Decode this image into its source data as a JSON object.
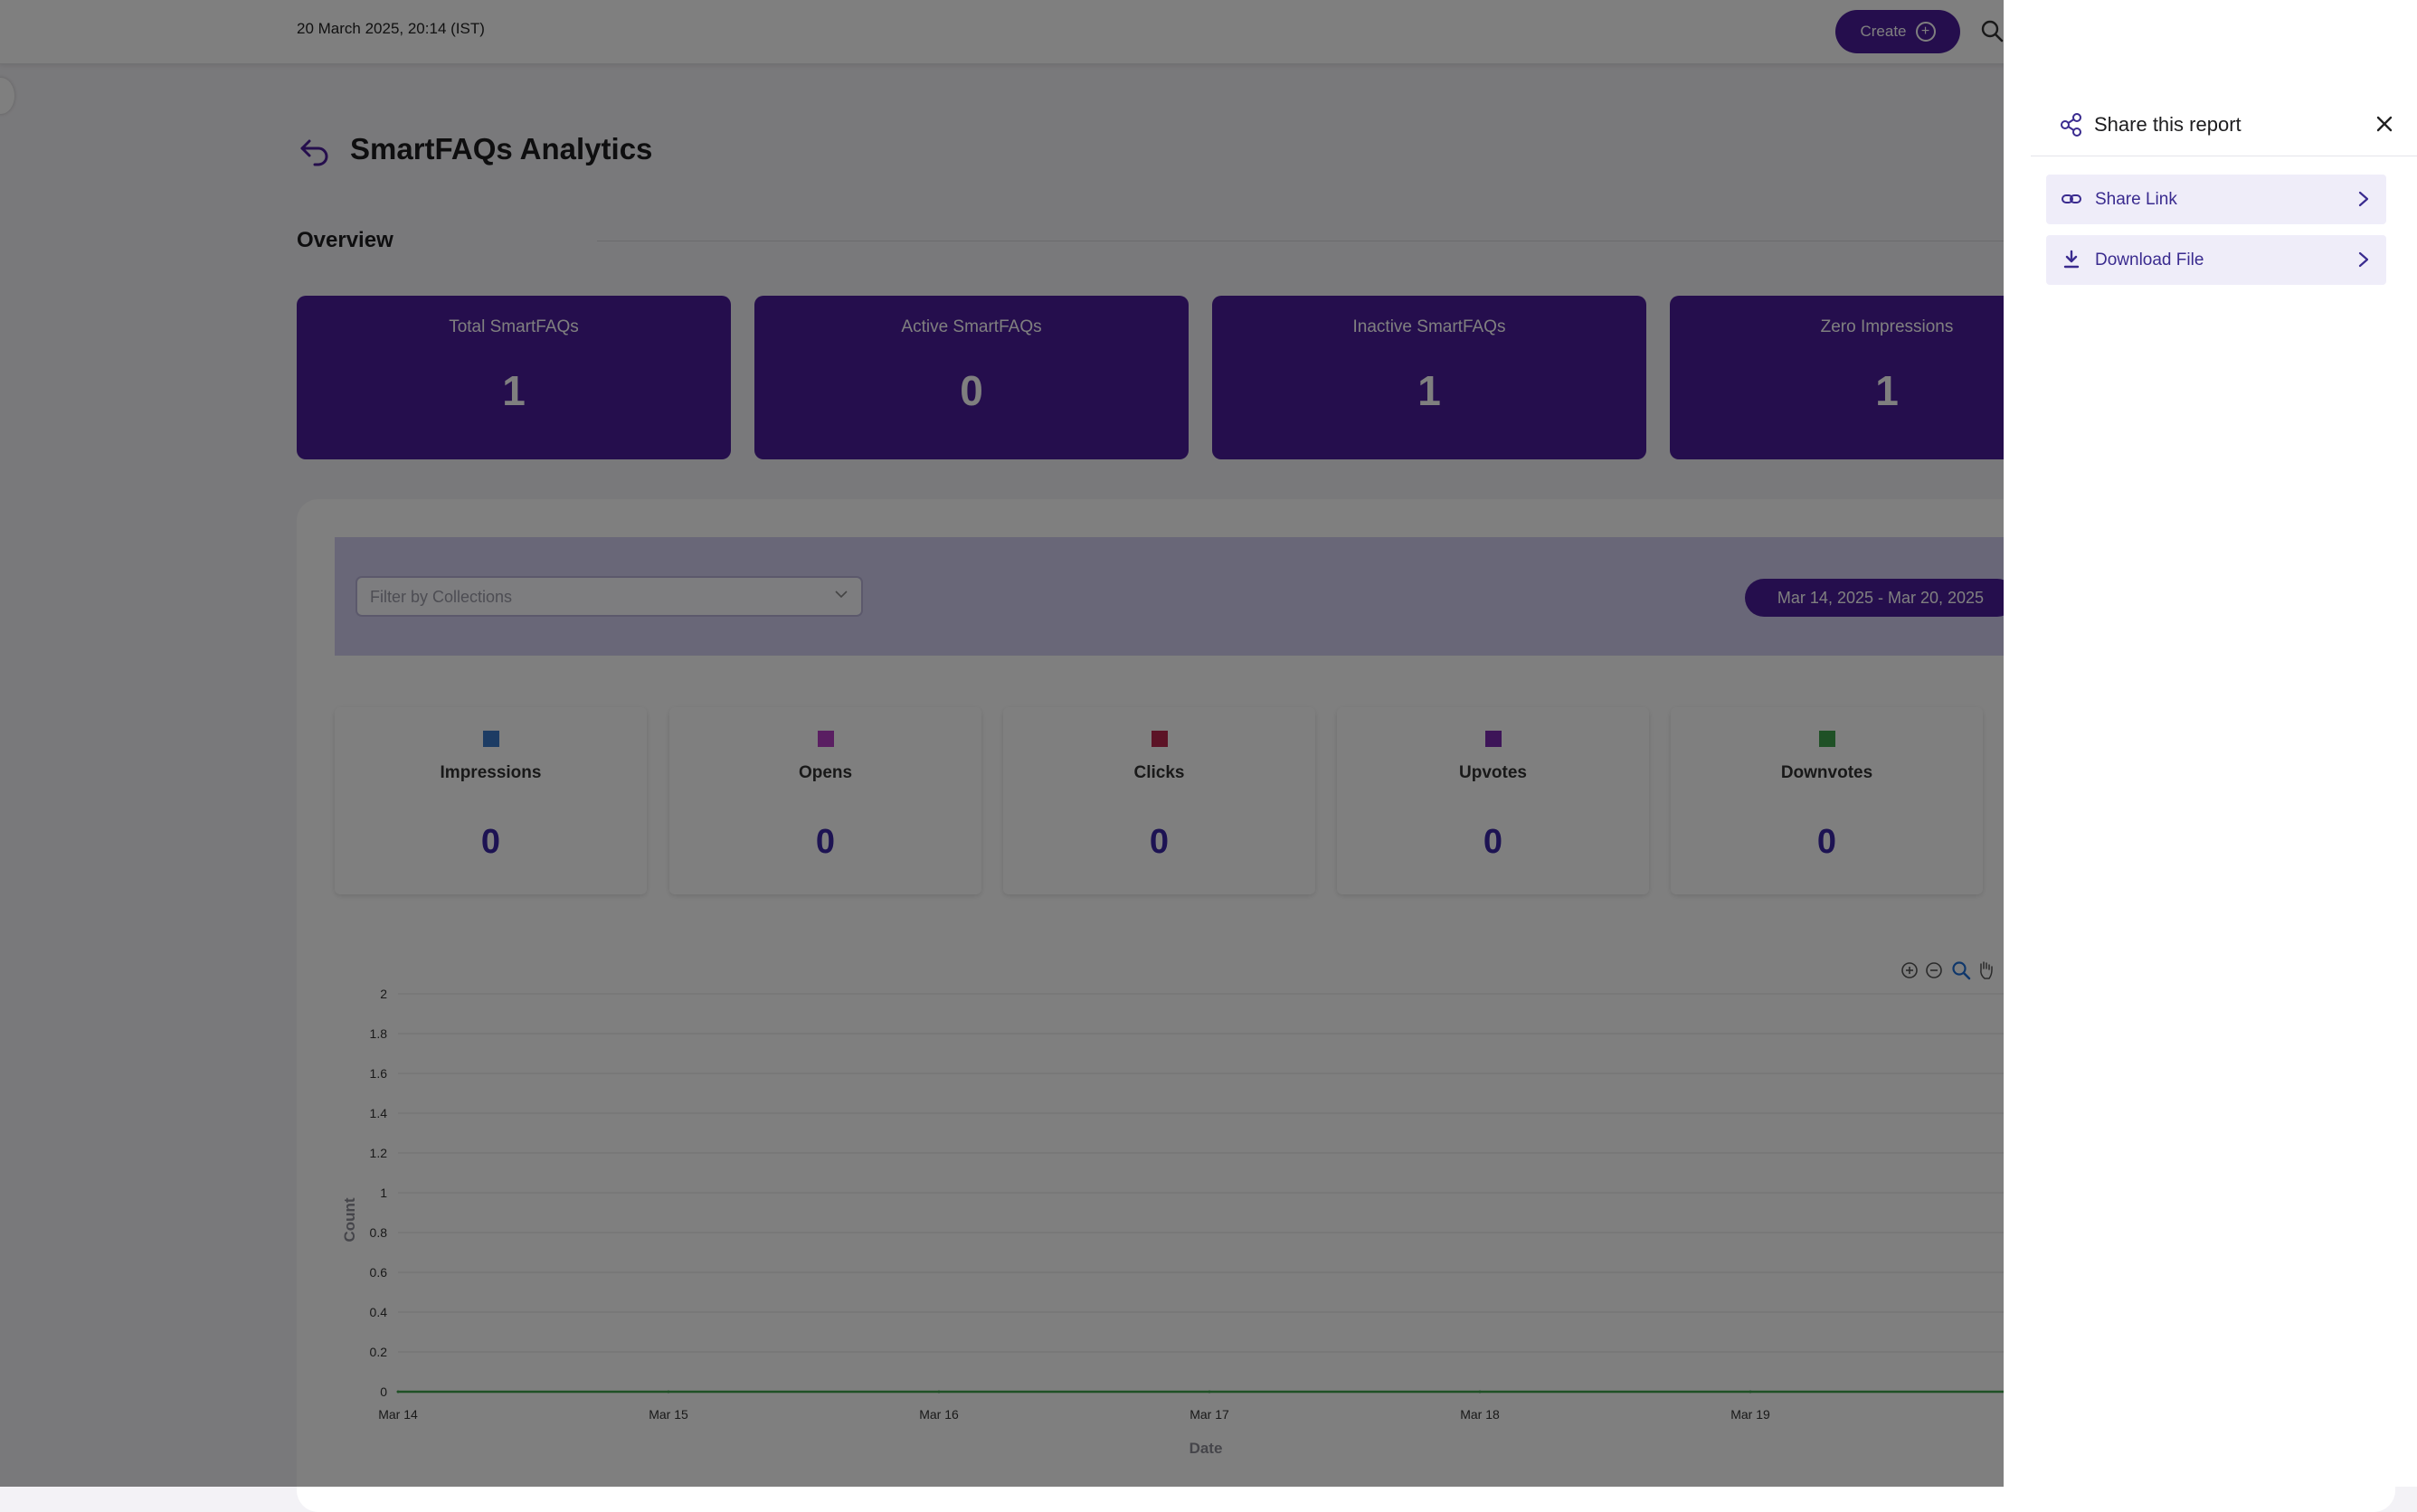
{
  "header": {
    "datetime": "20 March 2025, 20:14 (IST)",
    "create_label": "Create"
  },
  "page": {
    "title": "SmartFAQs Analytics",
    "section_title": "Overview"
  },
  "kpis": [
    {
      "label": "Total SmartFAQs",
      "value": "1"
    },
    {
      "label": "Active SmartFAQs",
      "value": "0"
    },
    {
      "label": "Inactive SmartFAQs",
      "value": "1"
    },
    {
      "label": "Zero Impressions",
      "value": "1"
    }
  ],
  "filters": {
    "collections_placeholder": "Filter by Collections",
    "date_range": "Mar 14, 2025 - Mar 20, 2025"
  },
  "metrics": [
    {
      "label": "Impressions",
      "value": "0",
      "color": "#3a78c8"
    },
    {
      "label": "Opens",
      "value": "0",
      "color": "#b43cc4"
    },
    {
      "label": "Clicks",
      "value": "0",
      "color": "#b8264c"
    },
    {
      "label": "Upvotes",
      "value": "0",
      "color": "#7a2ab0"
    },
    {
      "label": "Downvotes",
      "value": "0",
      "color": "#3fa34d"
    }
  ],
  "chart_data": {
    "type": "line",
    "x": [
      "Mar 14",
      "Mar 15",
      "Mar 16",
      "Mar 17",
      "Mar 18",
      "Mar 19"
    ],
    "xlabel": "Date",
    "ylabel": "Count",
    "ylim": [
      0,
      2
    ],
    "yticks": [
      "0",
      "0.2",
      "0.4",
      "0.6",
      "0.8",
      "1",
      "1.2",
      "1.4",
      "1.6",
      "1.8",
      "2"
    ],
    "grid": true,
    "series": [
      {
        "values": [
          0,
          0,
          0,
          0,
          0,
          0
        ],
        "color": "#3fa34d"
      }
    ],
    "toolbar_icons": [
      "zoom-in-icon",
      "zoom-out-icon",
      "magnifier-icon",
      "pan-hand-icon"
    ]
  },
  "share_drawer": {
    "title": "Share this report",
    "options": [
      {
        "label": "Share Link",
        "icon": "link-icon"
      },
      {
        "label": "Download File",
        "icon": "download-icon"
      }
    ]
  },
  "colors": {
    "brand": "#4b1d9a",
    "filter_bar": "#d3cff0",
    "overlay": "rgba(0,0,0,0.5)"
  }
}
